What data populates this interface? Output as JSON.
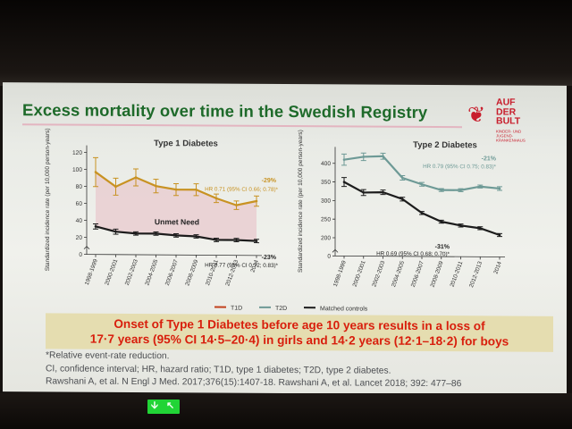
{
  "slide": {
    "title": "Excess mortality over time in the Swedish Registry",
    "logo": {
      "name_lines": [
        "AUF",
        "DER",
        "BULT"
      ],
      "sub_lines": [
        "KINDER- UND",
        "JUGEND-",
        "KRANKENHAUS"
      ]
    },
    "highlight_lines": [
      "Onset of Type 1 Diabetes before age 10 years results in a loss of",
      "17·7 years (95% CI 14·5–20·4) in girls and 14·2 years (12·1–18·2) for boys"
    ],
    "footnotes": [
      "*Relative event-rate reduction.",
      "CI, confidence interval; HR, hazard ratio; T1D, type 1 diabetes; T2D, type 2 diabetes.",
      "Rawshani A, et al. N Engl J Med. 2017;376(15):1407-18.  Rawshani A, et al. Lancet 2018; 392: 477–86"
    ],
    "legend": {
      "t1d": "T1D",
      "t2d": "T2D",
      "controls": "Matched controls"
    }
  },
  "exit_sign": {
    "left_glyph": "🡫",
    "right_glyph": "↖"
  },
  "chart_data": [
    {
      "type": "line",
      "title": "Type 1 Diabetes",
      "ylabel": "Standardized incidence rate (per 10,000 person-years)",
      "ylim": [
        0,
        120
      ],
      "yticks": [
        0,
        20,
        40,
        60,
        80,
        100,
        120
      ],
      "categories": [
        "1998-1999",
        "2000-2001",
        "2002-2003",
        "2004-2005",
        "2006-2007",
        "2008-2009",
        "2010-2011",
        "2012-2013",
        "2014"
      ],
      "series": [
        {
          "name": "T1D",
          "color": "#c89222",
          "values": [
            97,
            80,
            91,
            81,
            77,
            77,
            67,
            59,
            64
          ],
          "err": [
            17,
            10,
            10,
            8,
            7,
            7,
            5,
            5,
            6
          ]
        },
        {
          "name": "Matched controls",
          "color": "#1c1c1c",
          "values": [
            33,
            27,
            25,
            25,
            23,
            22,
            18,
            18,
            17
          ],
          "err": [
            3,
            3,
            2,
            2,
            2,
            2,
            2,
            2,
            2
          ]
        }
      ],
      "area_label": "Unmet Need",
      "annotations": [
        {
          "text": "-29%",
          "color": "#c89222"
        },
        {
          "text": "HR 0.71 (95% CI 0.66; 0.78)*",
          "color": "#c89222"
        },
        {
          "text": "-23%",
          "color": "#1c1c1c"
        },
        {
          "text": "HR 0.77 (95% CI 0.72; 0.83)*",
          "color": "#1c1c1c"
        }
      ]
    },
    {
      "type": "line",
      "title": "Type 2 Diabetes",
      "ylabel": "Standardized incidence rate (per 10,000 person-years)",
      "ylim": [
        0,
        425
      ],
      "yticks": [
        0,
        200,
        250,
        300,
        350,
        400
      ],
      "categories": [
        "1998-1999",
        "2000-2001",
        "2002-2003",
        "2004-2005",
        "2006-2007",
        "2008-2009",
        "2010-2011",
        "2012-2013",
        "2014"
      ],
      "series": [
        {
          "name": "T2D",
          "color": "#6e9a96",
          "values": [
            410,
            418,
            420,
            362,
            345,
            330,
            330,
            340,
            335
          ],
          "err": [
            15,
            10,
            8,
            6,
            5,
            4,
            4,
            4,
            5
          ]
        },
        {
          "name": "Matched controls",
          "color": "#1c1c1c",
          "values": [
            350,
            322,
            323,
            305,
            268,
            245,
            235,
            228,
            210
          ],
          "err": [
            12,
            8,
            6,
            5,
            4,
            4,
            4,
            4,
            4
          ]
        }
      ],
      "annotations": [
        {
          "text": "-21%",
          "color": "#6e9a96"
        },
        {
          "text": "HR 0.79 (95% CI 0.75; 0.83)*",
          "color": "#6e9a96"
        },
        {
          "text": "-31%",
          "color": "#1c1c1c"
        },
        {
          "text": "HR 0.69 (95% CI 0.68; 0.70)*",
          "color": "#1c1c1c"
        }
      ]
    }
  ]
}
